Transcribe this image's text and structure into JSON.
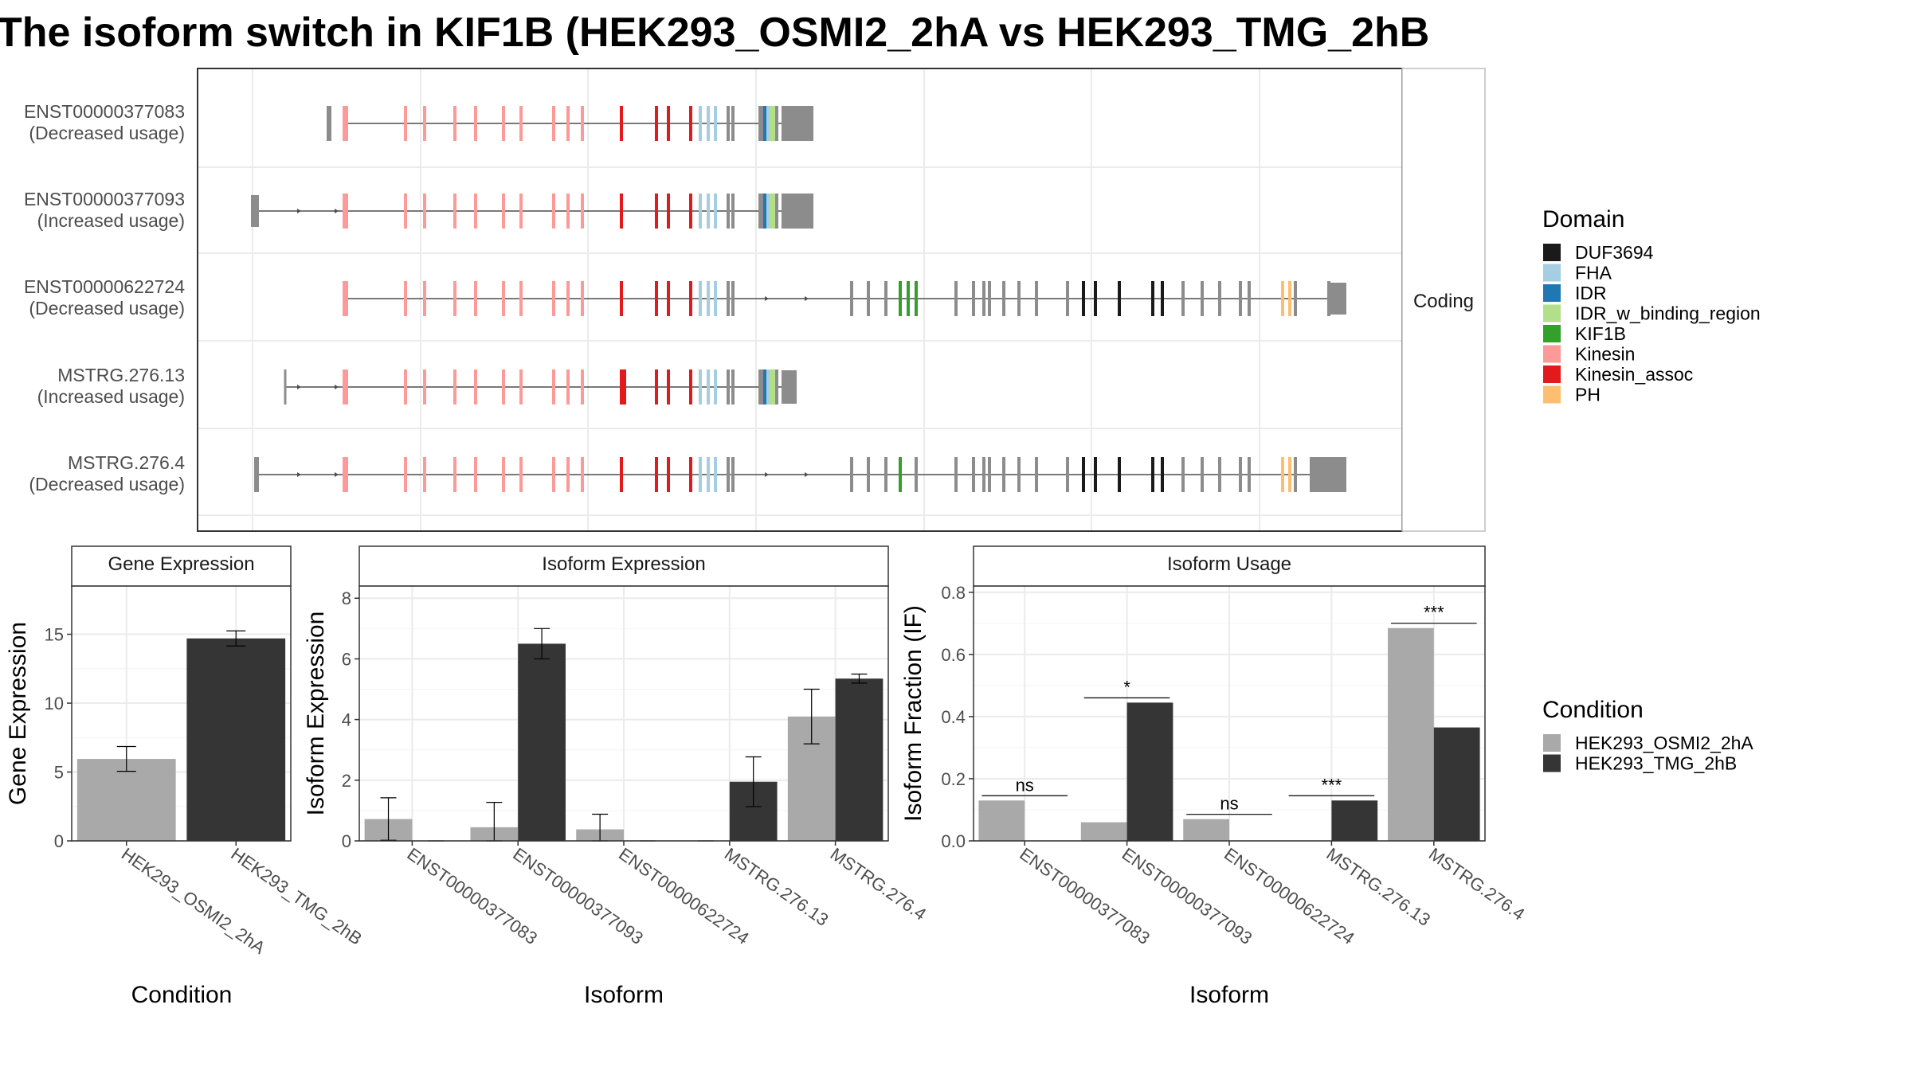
{
  "title": "The isoform switch in KIF1B (HEK293_OSMI2_2hA vs HEK293_TMG_2hB",
  "legend": {
    "domain": {
      "title": "Domain",
      "items": [
        {
          "name": "DUF3694",
          "color": "#1a1a1a"
        },
        {
          "name": "FHA",
          "color": "#a6cee3"
        },
        {
          "name": "IDR",
          "color": "#1f78b4"
        },
        {
          "name": "IDR_w_binding_region",
          "color": "#b2df8a"
        },
        {
          "name": "KIF1B",
          "color": "#33a02c"
        },
        {
          "name": "Kinesin",
          "color": "#fb9a99"
        },
        {
          "name": "Kinesin_assoc",
          "color": "#e31a1c"
        },
        {
          "name": "PH",
          "color": "#fdbf6f"
        }
      ]
    },
    "condition": {
      "title": "Condition",
      "items": [
        {
          "name": "HEK293_OSMI2_2hA",
          "color": "#a9a9a9"
        },
        {
          "name": "HEK293_TMG_2hB",
          "color": "#353535"
        }
      ]
    }
  },
  "structure": {
    "facet_label": "Coding",
    "isoforms": [
      {
        "id": "ENST00000377083",
        "label": "(Decreased usage)",
        "type": "short"
      },
      {
        "id": "ENST00000377093",
        "label": "(Increased usage)",
        "type": "short"
      },
      {
        "id": "ENST00000622724",
        "label": "(Decreased usage)",
        "type": "long"
      },
      {
        "id": "MSTRG.276.13",
        "label": "(Increased usage)",
        "type": "short"
      },
      {
        "id": "MSTRG.276.4",
        "label": "(Decreased usage)",
        "type": "long"
      }
    ]
  },
  "chart_data": [
    {
      "type": "bar",
      "strip": "Gene Expression",
      "xlabel": "Condition",
      "ylabel": "Gene Expression",
      "ylim": [
        0,
        18.5
      ],
      "yticks": [
        0,
        5,
        10,
        15
      ],
      "categories": [
        "HEK293_OSMI2_2hA",
        "HEK293_TMG_2hB"
      ],
      "values": [
        5.95,
        14.7
      ],
      "errors": [
        0.9,
        0.55
      ],
      "colors": [
        "#a9a9a9",
        "#353535"
      ]
    },
    {
      "type": "bar",
      "strip": "Isoform Expression",
      "xlabel": "Isoform",
      "ylabel": "Isoform Expression",
      "ylim": [
        0,
        8.4
      ],
      "yticks": [
        0,
        2,
        4,
        6,
        8
      ],
      "categories": [
        "ENST00000377083",
        "ENST00000377093",
        "ENST00000622724",
        "MSTRG.276.13",
        "MSTRG.276.4"
      ],
      "series": [
        {
          "name": "HEK293_OSMI2_2hA",
          "values": [
            0.72,
            0.45,
            0.38,
            0.0,
            4.1
          ],
          "errors": [
            0.7,
            0.82,
            0.5,
            0.0,
            0.9
          ]
        },
        {
          "name": "HEK293_TMG_2hB",
          "values": [
            0.0,
            6.5,
            0.0,
            1.95,
            5.35
          ],
          "errors": [
            0.0,
            0.5,
            0.0,
            0.82,
            0.15
          ]
        }
      ]
    },
    {
      "type": "bar",
      "strip": "Isoform Usage",
      "xlabel": "Isoform",
      "ylabel": "Isoform Fraction (IF)",
      "ylim": [
        0,
        0.82
      ],
      "yticks": [
        "0.0",
        "0.2",
        "0.4",
        "0.6",
        "0.8"
      ],
      "categories": [
        "ENST00000377083",
        "ENST00000377093",
        "ENST00000622724",
        "MSTRG.276.13",
        "MSTRG.276.4"
      ],
      "series": [
        {
          "name": "HEK293_OSMI2_2hA",
          "values": [
            0.13,
            0.06,
            0.07,
            0.0,
            0.685
          ]
        },
        {
          "name": "HEK293_TMG_2hB",
          "values": [
            0.0,
            0.445,
            0.0,
            0.13,
            0.365
          ]
        }
      ],
      "significance": [
        "ns",
        "*",
        "ns",
        "***",
        "***"
      ]
    }
  ]
}
